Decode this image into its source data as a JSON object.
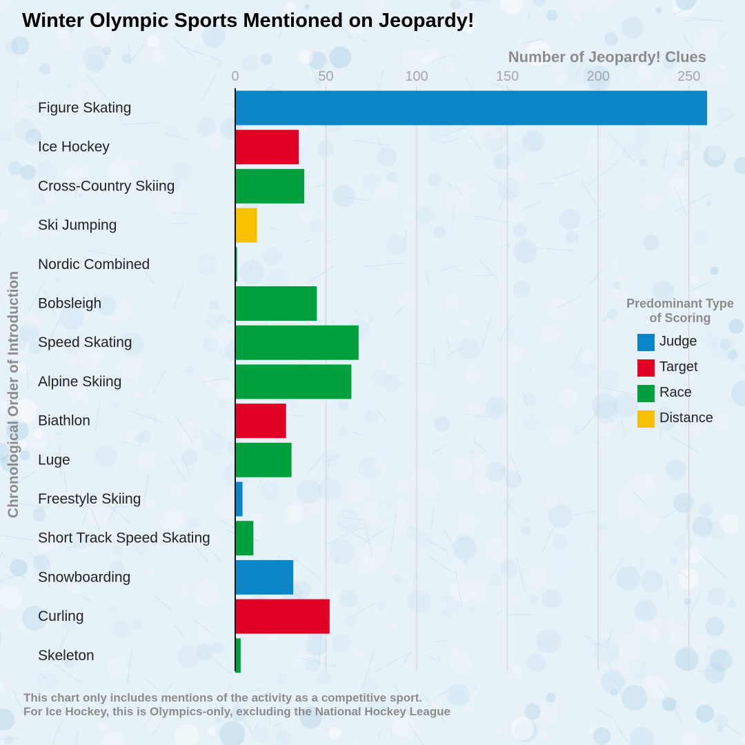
{
  "title": "Winter Olympic Sports Mentioned on Jeopardy!",
  "footnote": {
    "line1": "This chart only includes mentions of the activity as a competitive sport.",
    "line2": "For Ice Hockey, this is Olympics-only, excluding the National Hockey League"
  },
  "chart_data": {
    "type": "bar",
    "orientation": "horizontal",
    "title": "Winter Olympic Sports Mentioned on Jeopardy!",
    "xlabel": "Number of Jeopardy! Clues",
    "ylabel": "Chronological Order of Introduction",
    "xlim": [
      0,
      260
    ],
    "xticks": [
      0,
      50,
      100,
      150,
      200,
      250
    ],
    "grid": true,
    "legend_title": "Predominant Type of Scoring",
    "legend_position": "right",
    "legend": [
      {
        "name": "Judge",
        "color": "#0a86c7"
      },
      {
        "name": "Target",
        "color": "#e00024"
      },
      {
        "name": "Race",
        "color": "#00a03e"
      },
      {
        "name": "Distance",
        "color": "#f5c100"
      }
    ],
    "categories": [
      "Figure Skating",
      "Ice Hockey",
      "Cross-Country Skiing",
      "Ski Jumping",
      "Nordic Combined",
      "Bobsleigh",
      "Speed Skating",
      "Alpine Skiing",
      "Biathlon",
      "Luge",
      "Freestyle Skiing",
      "Short Track Speed Skating",
      "Snowboarding",
      "Curling",
      "Skeleton"
    ],
    "values": [
      260,
      35,
      38,
      12,
      1,
      45,
      68,
      64,
      28,
      31,
      4,
      10,
      32,
      52,
      3
    ],
    "scoring": [
      "Judge",
      "Target",
      "Race",
      "Distance",
      "Race",
      "Race",
      "Race",
      "Race",
      "Target",
      "Race",
      "Judge",
      "Race",
      "Judge",
      "Target",
      "Race"
    ]
  }
}
